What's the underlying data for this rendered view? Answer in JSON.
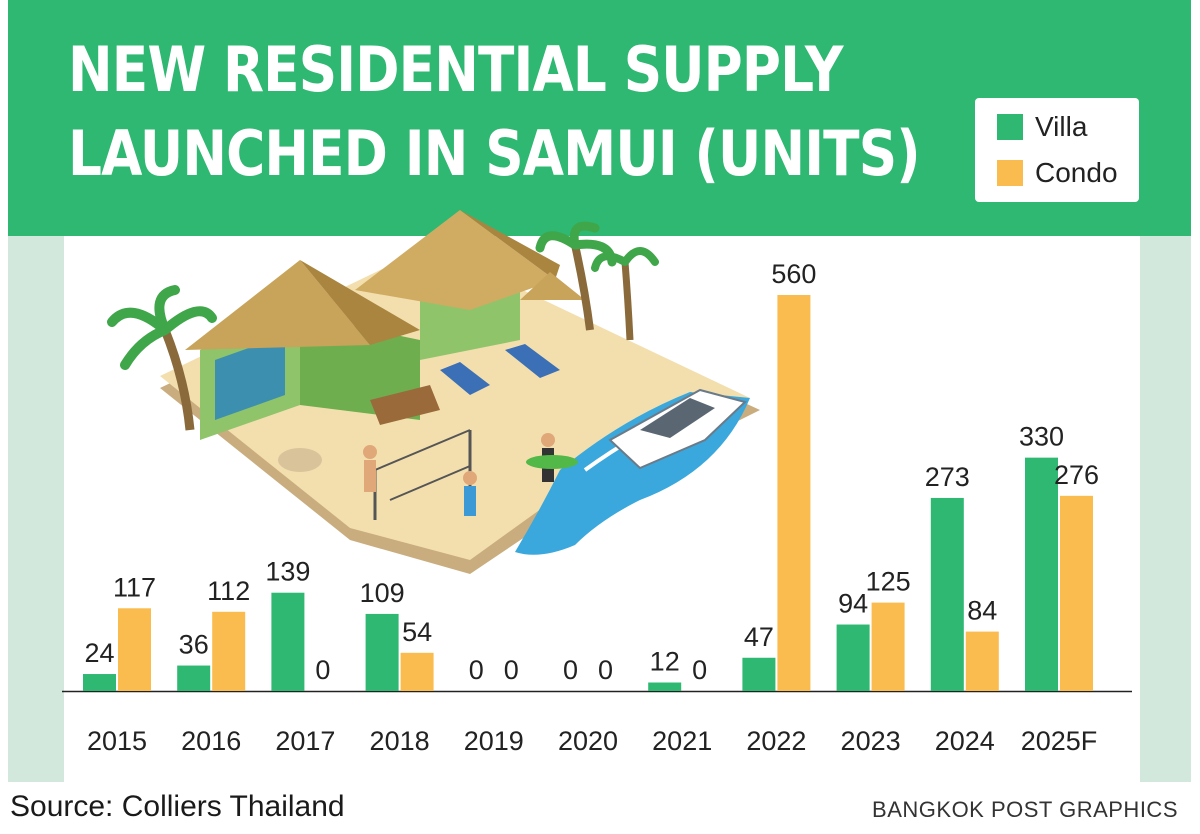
{
  "chart_data": {
    "type": "bar",
    "title": "NEW RESIDENTIAL SUPPLY\nLAUNCHED IN SAMUI (UNITS)",
    "categories": [
      "2015",
      "2016",
      "2017",
      "2018",
      "2019",
      "2020",
      "2021",
      "2022",
      "2023",
      "2024",
      "2025F"
    ],
    "series": [
      {
        "name": "Villa",
        "color": "#2eb872",
        "values": [
          24,
          36,
          139,
          109,
          0,
          0,
          12,
          47,
          94,
          273,
          330
        ]
      },
      {
        "name": "Condo",
        "color": "#fbbc4f",
        "values": [
          117,
          112,
          0,
          54,
          0,
          0,
          0,
          560,
          125,
          84,
          276
        ]
      }
    ],
    "legend_position": "top-right",
    "grid": false,
    "ylim": [
      0,
      560
    ]
  },
  "footer": {
    "source": "Source: Colliers Thailand",
    "credit": "BANGKOK POST GRAPHICS"
  },
  "illustration": {
    "icon": "beach-resort-illustration"
  }
}
